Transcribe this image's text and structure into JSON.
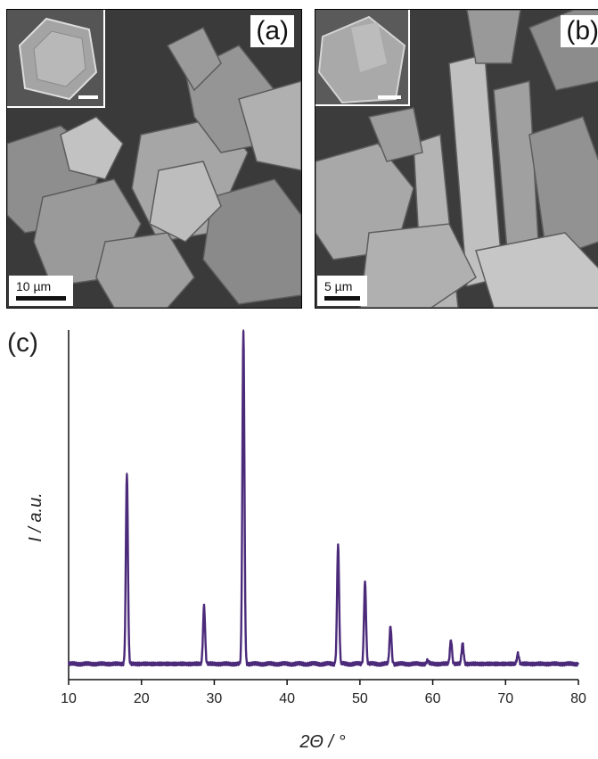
{
  "panel_a": {
    "label": "(a)",
    "scale_bar": "10 µm"
  },
  "panel_b": {
    "label": "(b)",
    "scale_bar": "5 µm"
  },
  "chart_data": {
    "panel_label": "(c)",
    "type": "line",
    "xlabel": "2Θ / °",
    "ylabel": "I / a.u.",
    "xlim": [
      10,
      80
    ],
    "xticks": [
      10,
      20,
      30,
      40,
      50,
      60,
      70,
      80
    ],
    "yticks_visible": false,
    "series_color": "#4b2a7a",
    "baseline": 2,
    "peaks": [
      {
        "x": 18.0,
        "y": 58
      },
      {
        "x": 28.6,
        "y": 19
      },
      {
        "x": 34.0,
        "y": 100
      },
      {
        "x": 47.0,
        "y": 37
      },
      {
        "x": 50.7,
        "y": 26
      },
      {
        "x": 54.2,
        "y": 13
      },
      {
        "x": 59.3,
        "y": 3
      },
      {
        "x": 62.5,
        "y": 9
      },
      {
        "x": 64.1,
        "y": 8
      },
      {
        "x": 71.7,
        "y": 5
      },
      {
        "x": 79.0,
        "y": 2
      }
    ]
  }
}
